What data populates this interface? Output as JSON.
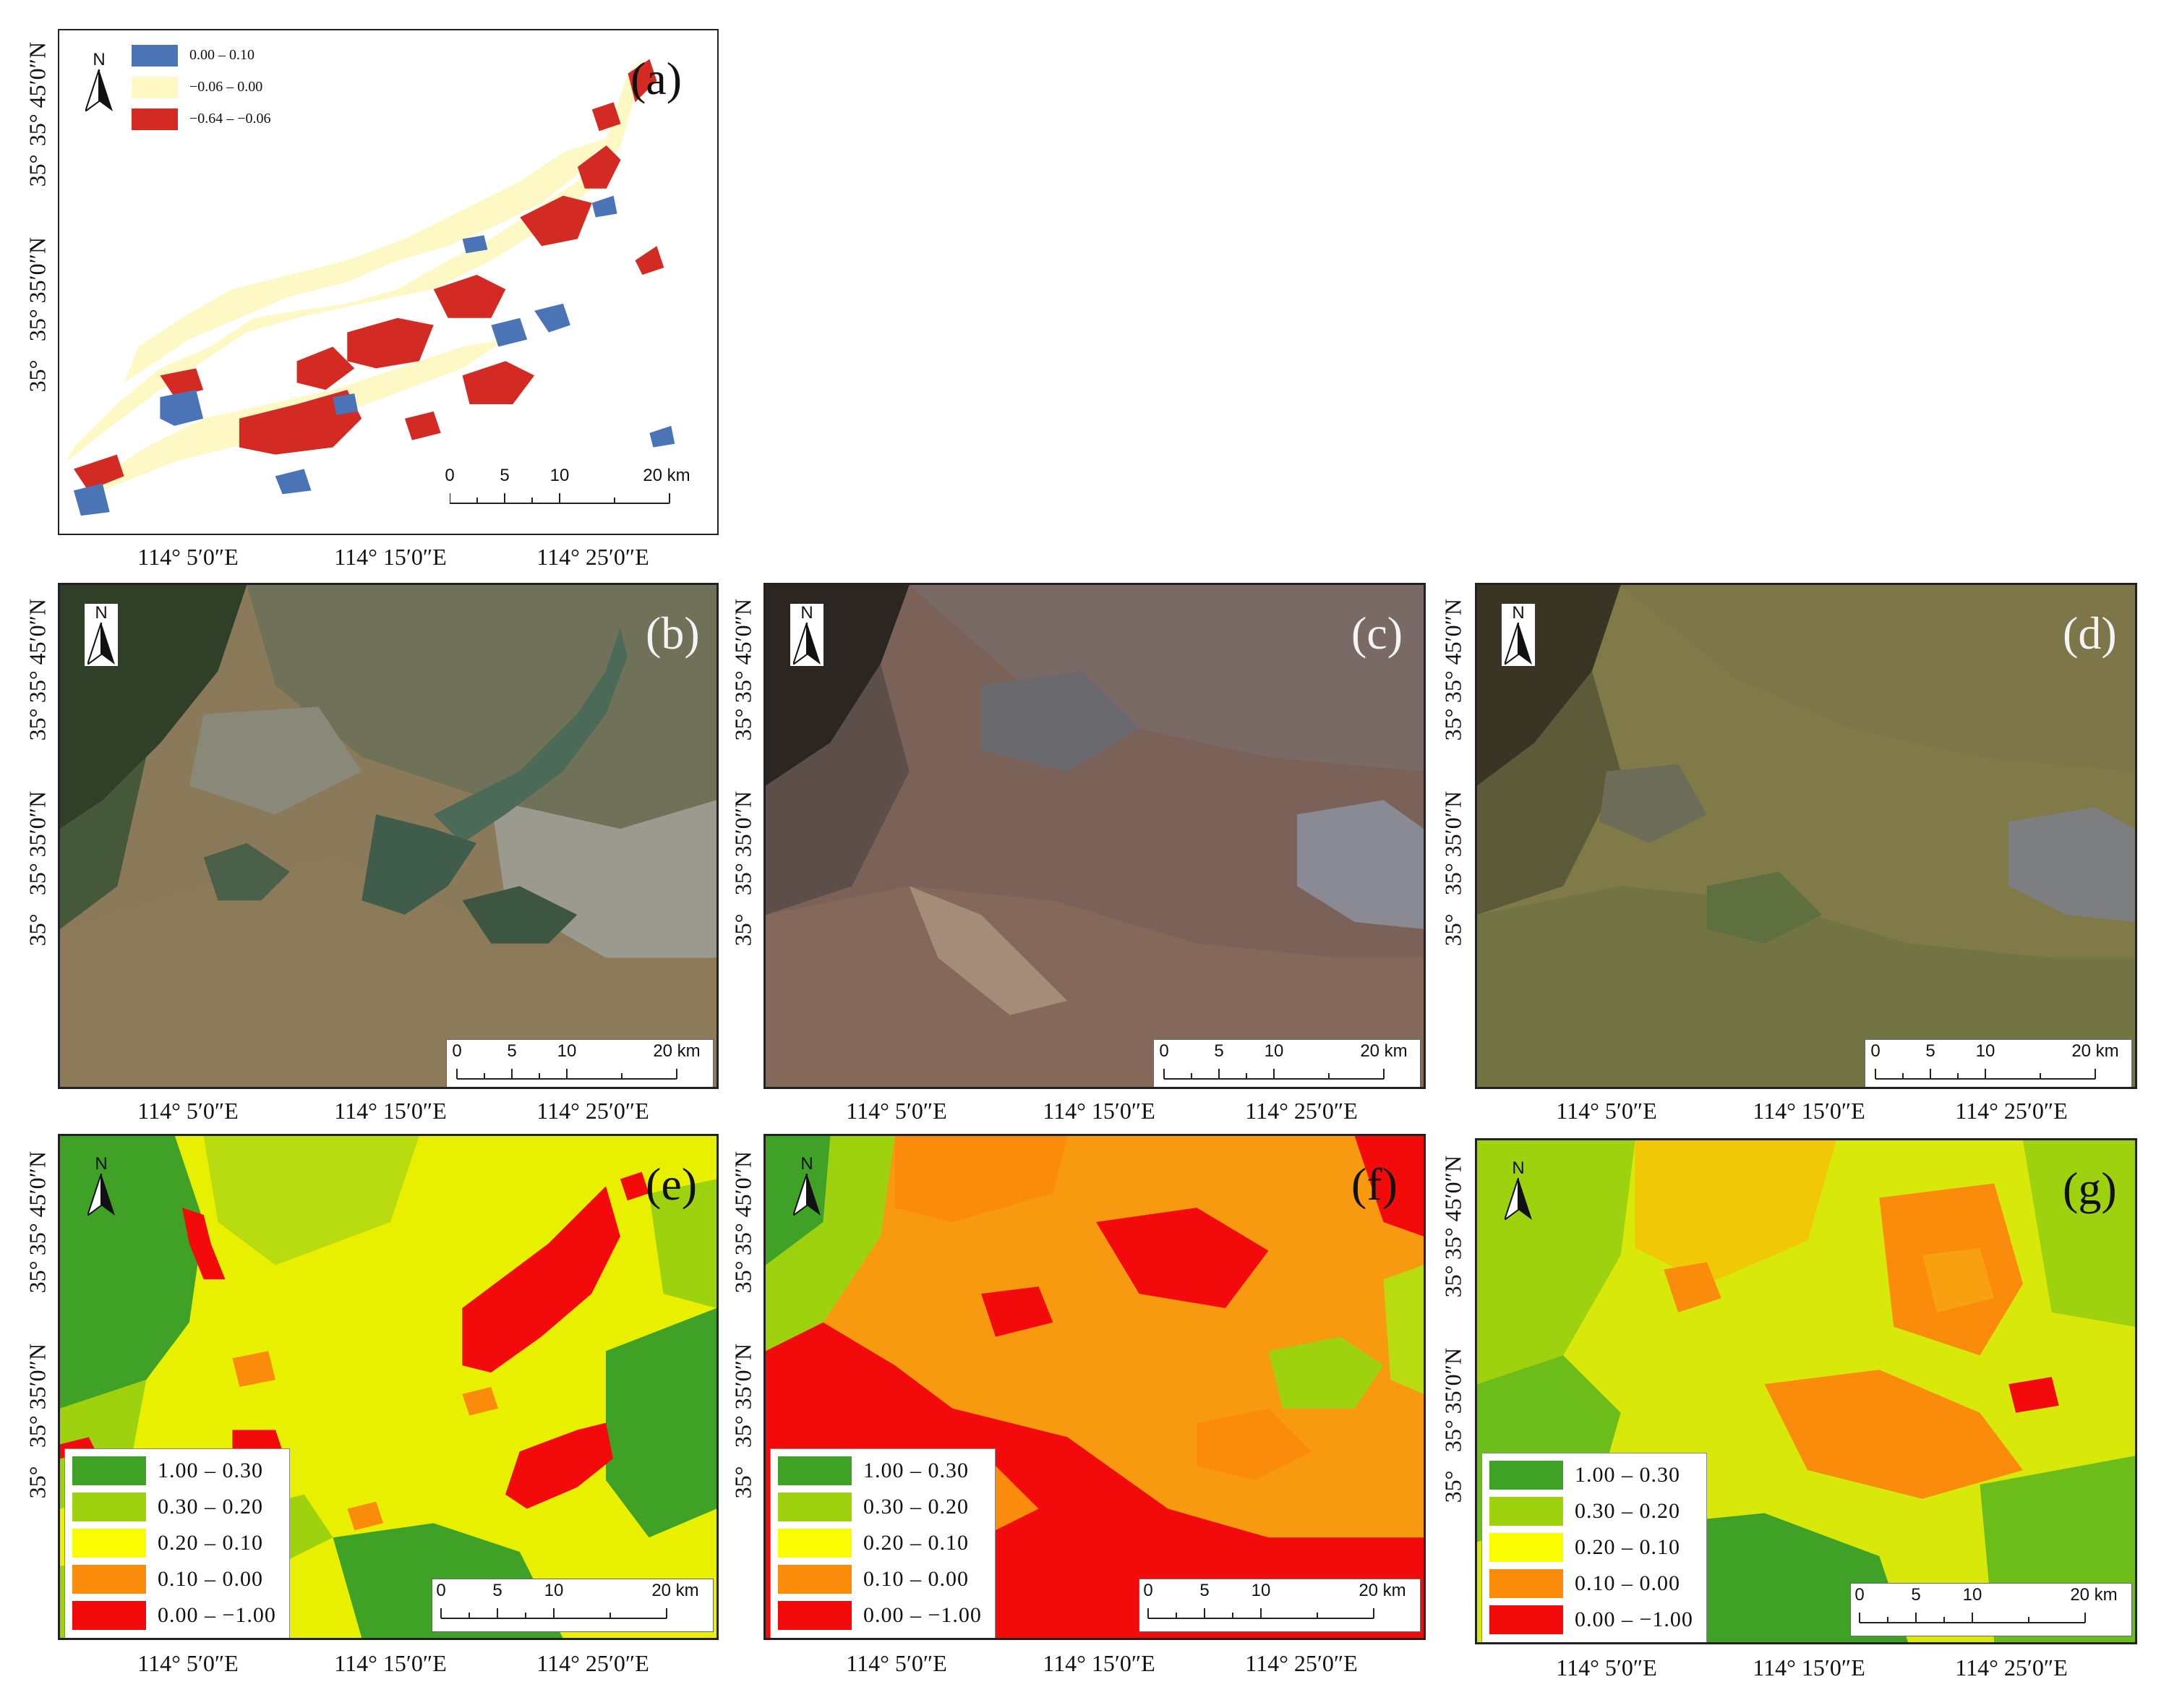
{
  "panels": {
    "a": {
      "label": "(a)"
    },
    "b": {
      "label": "(b)"
    },
    "c": {
      "label": "(c)"
    },
    "d": {
      "label": "(d)"
    },
    "e": {
      "label": "(e)"
    },
    "f": {
      "label": "(f)"
    },
    "g": {
      "label": "(g)"
    }
  },
  "north_label": "N",
  "scalebar": {
    "ticks_a": [
      "0",
      "5",
      "10",
      "20 km"
    ],
    "ticks": [
      "0",
      "5",
      "10",
      "20 km"
    ]
  },
  "axes": {
    "x_ticks": [
      "114° 5′0″E",
      "114° 15′0″E",
      "114° 25′0″E"
    ],
    "y_ticks": [
      "35° 45′0″N",
      "35°",
      "35° 35′0″N",
      "35°"
    ]
  },
  "legend_a": [
    {
      "label": "0.00 – 0.10",
      "color": "#4a74b5"
    },
    {
      "label": "−0.06 – 0.00",
      "color": "#fdf8c4"
    },
    {
      "label": "−0.64 – −0.06",
      "color": "#d42a24"
    }
  ],
  "legend_index": [
    {
      "label": "1.00 – 0.30",
      "color": "#3fa226"
    },
    {
      "label": "0.30 – 0.20",
      "color": "#9ed10e"
    },
    {
      "label": "0.20 – 0.10",
      "color": "#fafc00"
    },
    {
      "label": "0.10 – 0.00",
      "color": "#fb8b0b"
    },
    {
      "label": "0.00 – −1.00",
      "color": "#f30a0a"
    }
  ]
}
